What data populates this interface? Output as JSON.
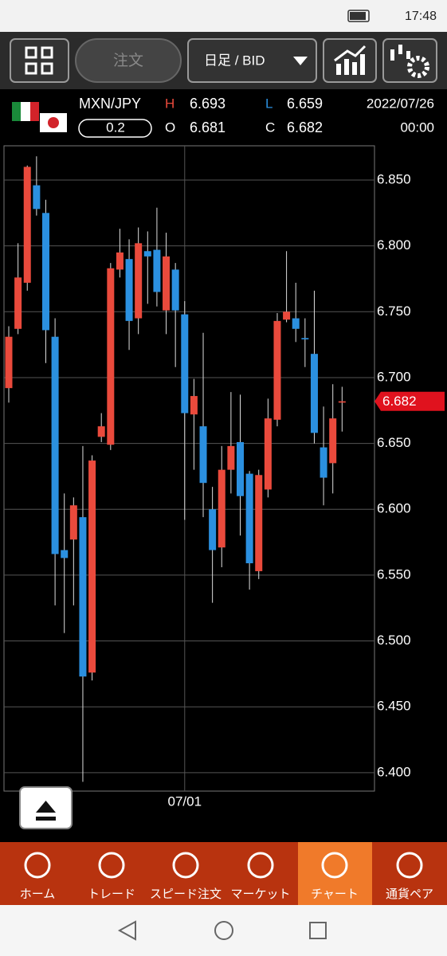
{
  "status_bar": {
    "time": "17:48"
  },
  "toolbar": {
    "order": "注文",
    "timeframe": "日足 / BID"
  },
  "quote": {
    "pair": "MXN/JPY",
    "spread": "0.2",
    "high_label": "H",
    "high": "6.693",
    "low_label": "L",
    "low": "6.659",
    "open_label": "O",
    "open": "6.681",
    "close_label": "C",
    "close": "6.682",
    "date": "2022/07/26",
    "time": "00:00"
  },
  "chart_data": {
    "type": "candlestick",
    "categories": [
      null,
      null,
      null,
      null,
      null,
      null,
      null,
      null,
      null,
      null,
      null,
      null,
      null,
      null,
      null,
      null,
      null,
      null,
      null,
      "07/01",
      null,
      null,
      null,
      null,
      null,
      null,
      null,
      null,
      null,
      null,
      null,
      null,
      null,
      null,
      null,
      null,
      null
    ],
    "open": [
      6.692,
      6.737,
      6.772,
      6.846,
      6.825,
      6.731,
      6.569,
      6.577,
      6.594,
      6.476,
      6.655,
      6.649,
      6.782,
      6.79,
      6.745,
      6.796,
      6.797,
      6.751,
      6.782,
      6.748,
      6.672,
      6.663,
      6.6,
      6.571,
      6.63,
      6.651,
      6.627,
      6.553,
      6.615,
      6.668,
      6.744,
      6.745,
      6.73,
      6.718,
      6.647,
      6.635,
      6.681
    ],
    "high": [
      6.739,
      6.802,
      6.861,
      6.868,
      6.835,
      6.745,
      6.612,
      6.609,
      6.648,
      6.641,
      6.673,
      6.787,
      6.813,
      6.805,
      6.814,
      6.811,
      6.829,
      6.81,
      6.787,
      6.758,
      6.699,
      6.734,
      6.617,
      6.648,
      6.689,
      6.687,
      6.629,
      6.63,
      6.684,
      6.749,
      6.796,
      6.772,
      6.745,
      6.766,
      6.678,
      6.695,
      6.693
    ],
    "low": [
      6.681,
      6.733,
      6.766,
      6.823,
      6.711,
      6.527,
      6.506,
      6.527,
      6.393,
      6.47,
      6.651,
      6.645,
      6.776,
      6.721,
      6.733,
      6.756,
      6.754,
      6.733,
      6.708,
      6.592,
      6.63,
      6.594,
      6.529,
      6.556,
      6.612,
      6.58,
      6.539,
      6.547,
      6.609,
      6.663,
      6.742,
      6.727,
      6.708,
      6.65,
      6.603,
      6.612,
      6.659
    ],
    "close": [
      6.731,
      6.776,
      6.86,
      6.828,
      6.736,
      6.566,
      6.563,
      6.603,
      6.473,
      6.637,
      6.663,
      6.783,
      6.795,
      6.743,
      6.802,
      6.792,
      6.765,
      6.792,
      6.751,
      6.673,
      6.686,
      6.62,
      6.569,
      6.63,
      6.648,
      6.61,
      6.559,
      6.626,
      6.669,
      6.743,
      6.75,
      6.737,
      6.729,
      6.658,
      6.624,
      6.669,
      6.682
    ],
    "up_color": "#ea4a3c",
    "down_color": "#2b90e0",
    "current_price": 6.682,
    "ylim": [
      6.386,
      6.876
    ],
    "yticks": [
      {
        "value": 6.85,
        "label": "6.850"
      },
      {
        "value": 6.8,
        "label": "6.800"
      },
      {
        "value": 6.75,
        "label": "6.750"
      },
      {
        "value": 6.7,
        "label": "6.700"
      },
      {
        "value": 6.65,
        "label": "6.650"
      },
      {
        "value": 6.6,
        "label": "6.600"
      },
      {
        "value": 6.55,
        "label": "6.550"
      },
      {
        "value": 6.5,
        "label": "6.500"
      },
      {
        "value": 6.45,
        "label": "6.450"
      },
      {
        "value": 6.4,
        "label": "6.400"
      }
    ],
    "grid": true
  },
  "bottom_nav": [
    "ホーム",
    "トレード",
    "スピード注文",
    "マーケット",
    "チャート",
    "通貨ペア"
  ]
}
